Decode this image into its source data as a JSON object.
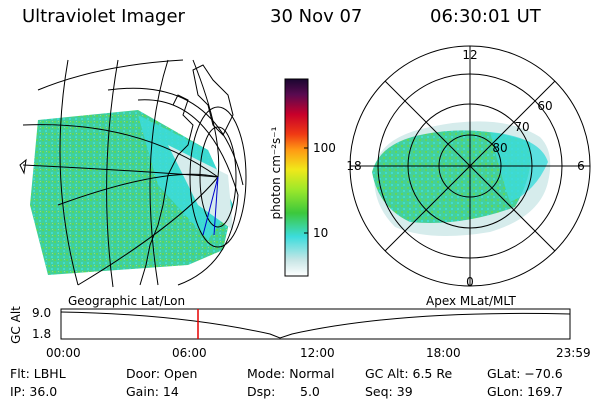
{
  "header": {
    "instrument": "Ultraviolet Imager",
    "date": "30 Nov 07",
    "time": "06:30:01 UT"
  },
  "colorbar": {
    "unit_label": "photon cm⁻²s⁻¹",
    "tick_labels": [
      "100",
      "10"
    ]
  },
  "polar": {
    "mlt_labels": [
      "12",
      "18",
      "6",
      "0"
    ],
    "lat_labels": [
      "60",
      "70",
      "80"
    ]
  },
  "timeline": {
    "left_title": "Geographic Lat/Lon",
    "right_title": "Apex MLat/MLT",
    "y_axis_label": "GC Alt",
    "y_ticks": [
      "9.0",
      "1.8"
    ],
    "x_ticks": [
      "00:00",
      "06:00",
      "12:00",
      "18:00",
      "23:59"
    ],
    "current_time_marker": "06:30"
  },
  "status": {
    "filter": "Flt: LBHL",
    "ip": "IP: 36.0",
    "door": "Door: Open",
    "gain": "Gain: 14",
    "mode": "Mode: Normal",
    "dsp_label": "Dsp:",
    "dsp_value": "5.0",
    "gc_alt": "GC Alt: 6.5 Re",
    "seq": "Seq: 39",
    "glat": "GLat: −70.6",
    "glon": "GLon: 169.7"
  },
  "colors": {
    "aurora_green": "#3cc83c",
    "aurora_cyan": "#3cdcdc",
    "aurora_faint": "#c8e6e6",
    "marker_red": "#e60000"
  }
}
